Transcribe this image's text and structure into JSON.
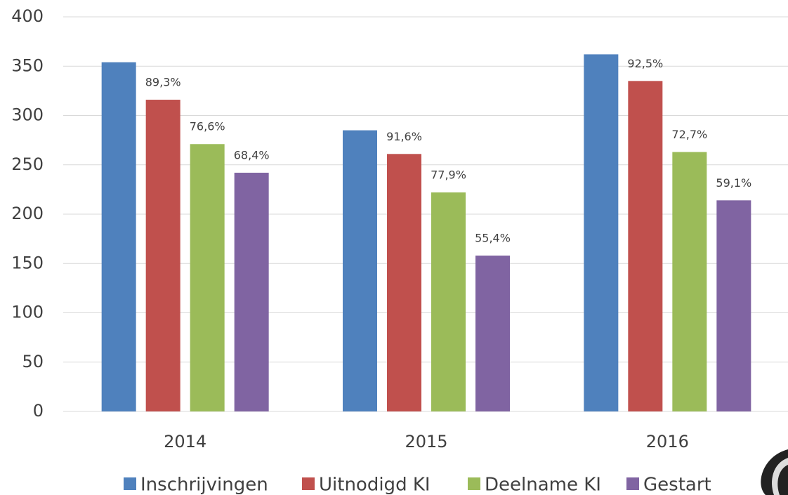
{
  "chart_data": {
    "type": "bar",
    "categories": [
      "2014",
      "2015",
      "2016"
    ],
    "series": [
      {
        "name": "Inschrijvingen",
        "color": "#4f81bd",
        "values": [
          354,
          285,
          362
        ]
      },
      {
        "name": "Uitnodigd KI",
        "color": "#c0504d",
        "values": [
          316,
          261,
          335
        ],
        "share_labels": [
          "89,3%",
          "91,6%",
          "92,5%"
        ]
      },
      {
        "name": "Deelname KI",
        "color": "#9bbb59",
        "values": [
          271,
          222,
          263
        ],
        "share_labels": [
          "76,6%",
          "77,9%",
          "72,7%"
        ]
      },
      {
        "name": "Gestart",
        "color": "#8064a2",
        "values": [
          242,
          158,
          214
        ],
        "share_labels": [
          "68,4%",
          "55,4%",
          "59,1%"
        ]
      }
    ],
    "ylim": [
      0,
      400
    ],
    "yticks": [
      0,
      50,
      100,
      150,
      200,
      250,
      300,
      350,
      400
    ],
    "grid": true,
    "legend": "bottom"
  }
}
